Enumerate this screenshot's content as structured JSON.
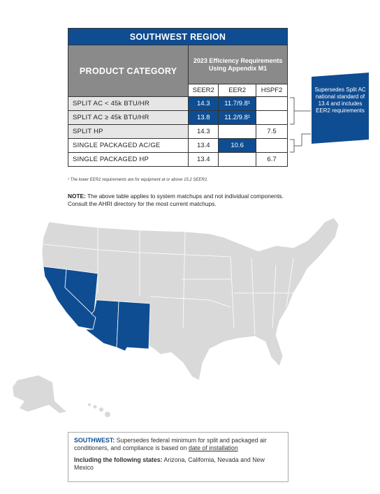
{
  "header": {
    "title": "SOUTHWEST REGION",
    "category_heading": "PRODUCT CATEGORY",
    "requirements_heading": "2023 Efficiency Requirements Using Appendix M1"
  },
  "table": {
    "columns": [
      "SEER2",
      "EER2",
      "HSPF2"
    ],
    "rows": [
      [
        "SPLIT AC < 45k BTU/HR",
        "14.3",
        "11.7/9.8¹",
        ""
      ],
      [
        "SPLIT AC ≥ 45k BTU/HR",
        "13.8",
        "11.2/9.8¹",
        ""
      ],
      [
        "SPLIT HP",
        "14.3",
        "",
        "7.5"
      ],
      [
        "SINGLE PACKAGED AC/GE",
        "13.4",
        "10.6",
        ""
      ],
      [
        "SINGLE PACKAGED HP",
        "13.4",
        "",
        "6.7"
      ]
    ]
  },
  "callout": "Supersedes Split AC national standard of 13.4 and includes EER2 requirements",
  "footnote": "¹ The lower EER2 requirements are for equipment at or above 15.2 SEER2.",
  "note": {
    "label": "NOTE:",
    "text": "The above table applies to system matchups and not individual components. Consult the AHRI directory for the most current matchups."
  },
  "summary": {
    "label": "SOUTHWEST:",
    "text": "Supersedes federal minimum for split and packaged air conditioners, and compliance is based on",
    "link": "date of installation",
    "states_label": "Including the following states:",
    "states": "Arizona, California, Nevada and New Mexico"
  }
}
